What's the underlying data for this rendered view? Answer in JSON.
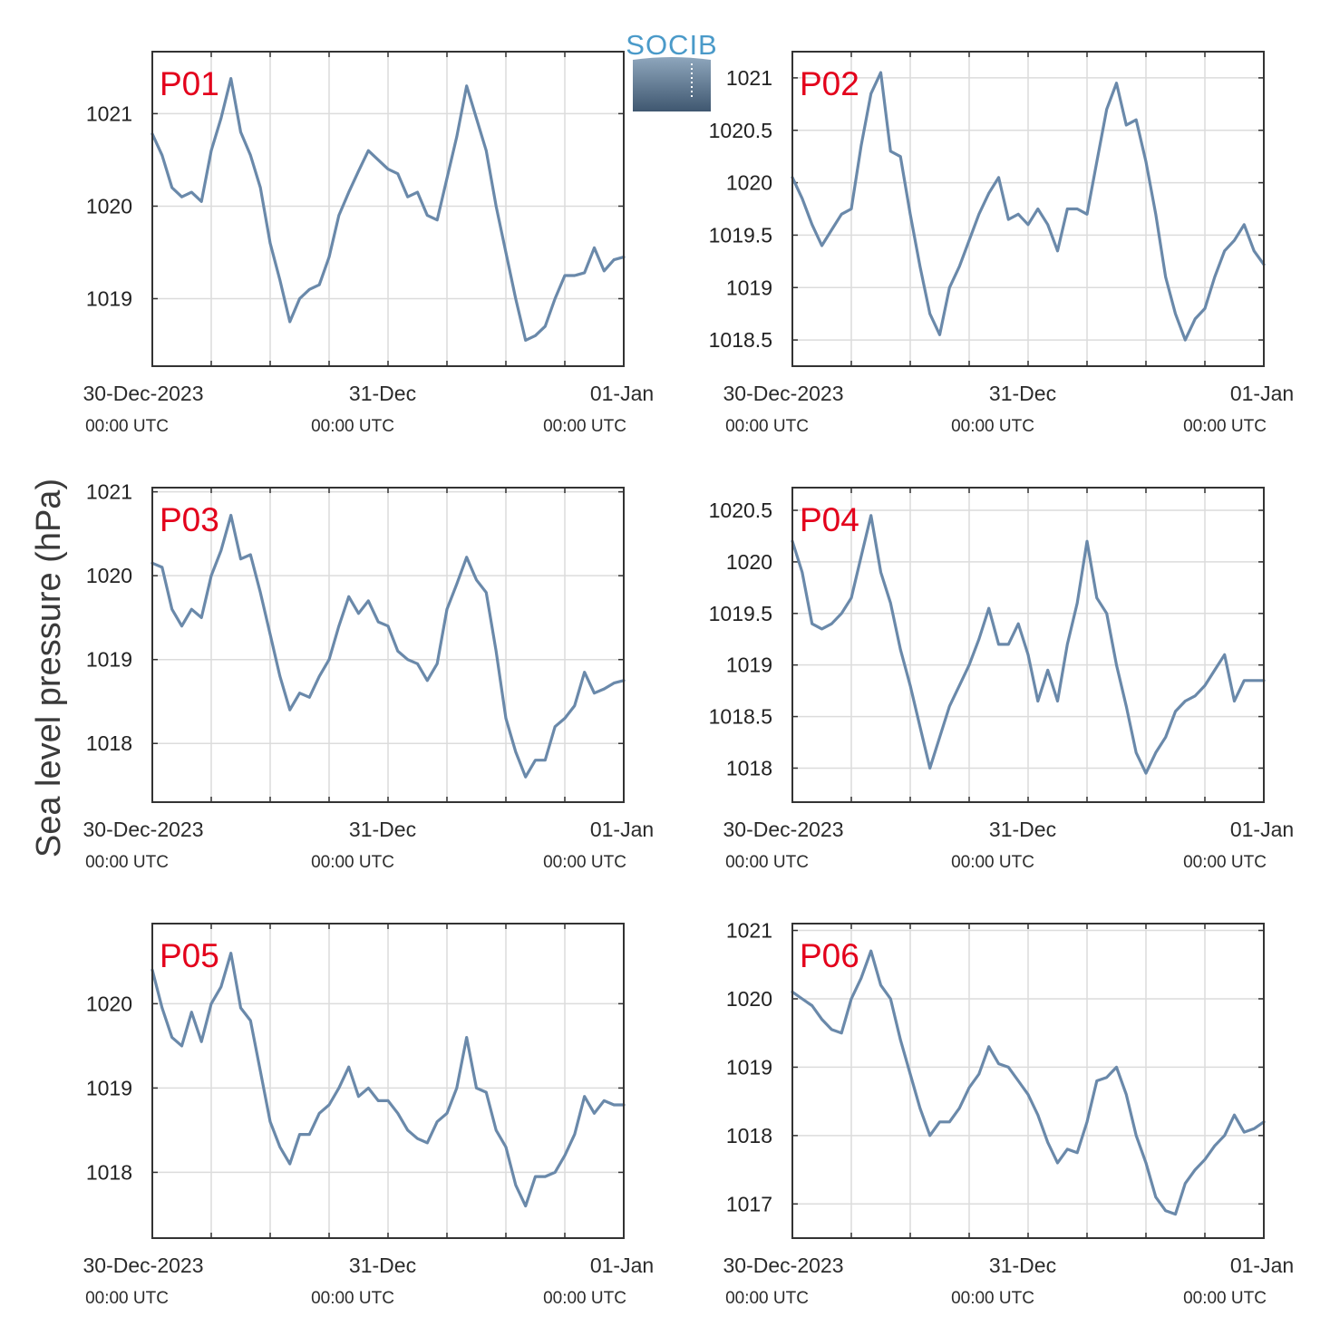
{
  "figure": {
    "ylabel": "Sea level pressure (hPa)",
    "logo_text": "SOCIB",
    "line_color": "#6a89aa",
    "title_color": "#e3001b"
  },
  "chart_data": [
    {
      "type": "line",
      "title": "P01",
      "xlabel": "",
      "ylabel": "Sea level pressure (hPa)",
      "xlim": [
        0,
        48
      ],
      "ylim": [
        1018.27,
        1021.67
      ],
      "yticks": [
        1019,
        1020,
        1021
      ],
      "ytick_labels": [
        "1019",
        "1020",
        "1021"
      ],
      "xtick_labels": [
        {
          "x": 0,
          "main": "30-Dec-2023",
          "sub": "00:00 UTC"
        },
        {
          "x": 24,
          "main": "31-Dec",
          "sub": "00:00 UTC"
        },
        {
          "x": 48,
          "main": "01-Jan",
          "sub": "00:00 UTC"
        }
      ],
      "series": [
        {
          "x": [
            0,
            1,
            2,
            3,
            4,
            5,
            6,
            7,
            8,
            9,
            10,
            11,
            12,
            13,
            14,
            15,
            16,
            17,
            18,
            19,
            20,
            21,
            22,
            23,
            24,
            25,
            26,
            27,
            28,
            29,
            30,
            31,
            32,
            33,
            34,
            35,
            36,
            37,
            38,
            39,
            40,
            41,
            42,
            43,
            44,
            45,
            46,
            47,
            48
          ],
          "values": [
            1020.78,
            1020.55,
            1020.2,
            1020.1,
            1020.15,
            1020.05,
            1020.6,
            1020.95,
            1021.38,
            1020.8,
            1020.55,
            1020.2,
            1019.6,
            1019.2,
            1018.75,
            1019.0,
            1019.1,
            1019.15,
            1019.45,
            1019.9,
            1020.15,
            1020.38,
            1020.6,
            1020.5,
            1020.4,
            1020.35,
            1020.1,
            1020.15,
            1019.9,
            1019.85,
            1020.3,
            1020.75,
            1021.3,
            1020.95,
            1020.6,
            1020.0,
            1019.5,
            1019.0,
            1018.55,
            1018.6,
            1018.7,
            1019.0,
            1019.25,
            1019.25,
            1019.28,
            1019.55,
            1019.3,
            1019.42,
            1019.45
          ]
        }
      ]
    },
    {
      "type": "line",
      "title": "P02",
      "xlabel": "",
      "ylabel": "Sea level pressure (hPa)",
      "xlim": [
        0,
        48
      ],
      "ylim": [
        1018.25,
        1021.25
      ],
      "yticks": [
        1018.5,
        1019,
        1019.5,
        1020,
        1020.5,
        1021
      ],
      "ytick_labels": [
        "1018.5",
        "1019",
        "1019.5",
        "1020",
        "1020.5",
        "1021"
      ],
      "xtick_labels": [
        {
          "x": 0,
          "main": "30-Dec-2023",
          "sub": "00:00 UTC"
        },
        {
          "x": 24,
          "main": "31-Dec",
          "sub": "00:00 UTC"
        },
        {
          "x": 48,
          "main": "01-Jan",
          "sub": "00:00 UTC"
        }
      ],
      "series": [
        {
          "x": [
            0,
            1,
            2,
            3,
            4,
            5,
            6,
            7,
            8,
            9,
            10,
            11,
            12,
            13,
            14,
            15,
            16,
            17,
            18,
            19,
            20,
            21,
            22,
            23,
            24,
            25,
            26,
            27,
            28,
            29,
            30,
            31,
            32,
            33,
            34,
            35,
            36,
            37,
            38,
            39,
            40,
            41,
            42,
            43,
            44,
            45,
            46,
            47,
            48
          ],
          "values": [
            1020.05,
            1019.85,
            1019.6,
            1019.4,
            1019.55,
            1019.7,
            1019.75,
            1020.35,
            1020.85,
            1021.05,
            1020.3,
            1020.25,
            1019.7,
            1019.2,
            1018.75,
            1018.55,
            1019.0,
            1019.2,
            1019.45,
            1019.7,
            1019.9,
            1020.05,
            1019.65,
            1019.7,
            1019.6,
            1019.75,
            1019.6,
            1019.35,
            1019.75,
            1019.75,
            1019.7,
            1020.2,
            1020.7,
            1020.95,
            1020.55,
            1020.6,
            1020.2,
            1019.7,
            1019.1,
            1018.75,
            1018.5,
            1018.7,
            1018.8,
            1019.1,
            1019.35,
            1019.45,
            1019.6,
            1019.35,
            1019.22
          ]
        }
      ]
    },
    {
      "type": "line",
      "title": "P03",
      "xlabel": "",
      "ylabel": "Sea level pressure (hPa)",
      "xlim": [
        0,
        48
      ],
      "ylim": [
        1017.3,
        1021.05
      ],
      "yticks": [
        1018,
        1019,
        1020,
        1021
      ],
      "ytick_labels": [
        "1018",
        "1019",
        "1020",
        "1021"
      ],
      "xtick_labels": [
        {
          "x": 0,
          "main": "30-Dec-2023",
          "sub": "00:00 UTC"
        },
        {
          "x": 24,
          "main": "31-Dec",
          "sub": "00:00 UTC"
        },
        {
          "x": 48,
          "main": "01-Jan",
          "sub": "00:00 UTC"
        }
      ],
      "series": [
        {
          "x": [
            0,
            1,
            2,
            3,
            4,
            5,
            6,
            7,
            8,
            9,
            10,
            11,
            12,
            13,
            14,
            15,
            16,
            17,
            18,
            19,
            20,
            21,
            22,
            23,
            24,
            25,
            26,
            27,
            28,
            29,
            30,
            31,
            32,
            33,
            34,
            35,
            36,
            37,
            38,
            39,
            40,
            41,
            42,
            43,
            44,
            45,
            46,
            47,
            48
          ],
          "values": [
            1020.15,
            1020.1,
            1019.6,
            1019.4,
            1019.6,
            1019.5,
            1020.0,
            1020.3,
            1020.72,
            1020.2,
            1020.25,
            1019.8,
            1019.3,
            1018.8,
            1018.4,
            1018.6,
            1018.55,
            1018.8,
            1019.0,
            1019.4,
            1019.75,
            1019.55,
            1019.7,
            1019.45,
            1019.4,
            1019.1,
            1019.0,
            1018.95,
            1018.75,
            1018.95,
            1019.6,
            1019.9,
            1020.22,
            1019.95,
            1019.8,
            1019.1,
            1018.3,
            1017.9,
            1017.6,
            1017.8,
            1017.8,
            1018.2,
            1018.3,
            1018.45,
            1018.85,
            1018.6,
            1018.65,
            1018.72,
            1018.75
          ]
        }
      ]
    },
    {
      "type": "line",
      "title": "P04",
      "xlabel": "",
      "ylabel": "Sea level pressure (hPa)",
      "xlim": [
        0,
        48
      ],
      "ylim": [
        1017.67,
        1020.72
      ],
      "yticks": [
        1018,
        1018.5,
        1019,
        1019.5,
        1020,
        1020.5
      ],
      "ytick_labels": [
        "1018",
        "1018.5",
        "1019",
        "1019.5",
        "1020",
        "1020.5"
      ],
      "xtick_labels": [
        {
          "x": 0,
          "main": "30-Dec-2023",
          "sub": "00:00 UTC"
        },
        {
          "x": 24,
          "main": "31-Dec",
          "sub": "00:00 UTC"
        },
        {
          "x": 48,
          "main": "01-Jan",
          "sub": "00:00 UTC"
        }
      ],
      "series": [
        {
          "x": [
            0,
            1,
            2,
            3,
            4,
            5,
            6,
            7,
            8,
            9,
            10,
            11,
            12,
            13,
            14,
            15,
            16,
            17,
            18,
            19,
            20,
            21,
            22,
            23,
            24,
            25,
            26,
            27,
            28,
            29,
            30,
            31,
            32,
            33,
            34,
            35,
            36,
            37,
            38,
            39,
            40,
            41,
            42,
            43,
            44,
            45,
            46,
            47,
            48
          ],
          "values": [
            1020.2,
            1019.9,
            1019.4,
            1019.35,
            1019.4,
            1019.5,
            1019.65,
            1020.05,
            1020.45,
            1019.9,
            1019.6,
            1019.15,
            1018.8,
            1018.4,
            1018.0,
            1018.3,
            1018.6,
            1018.8,
            1019.0,
            1019.25,
            1019.55,
            1019.2,
            1019.2,
            1019.4,
            1019.1,
            1018.65,
            1018.95,
            1018.65,
            1019.2,
            1019.6,
            1020.2,
            1019.65,
            1019.5,
            1019.0,
            1018.6,
            1018.15,
            1017.95,
            1018.15,
            1018.3,
            1018.55,
            1018.65,
            1018.7,
            1018.8,
            1018.95,
            1019.1,
            1018.65,
            1018.85,
            1018.85,
            1018.85
          ]
        }
      ]
    },
    {
      "type": "line",
      "title": "P05",
      "xlabel": "",
      "ylabel": "Sea level pressure (hPa)",
      "xlim": [
        0,
        48
      ],
      "ylim": [
        1017.22,
        1020.95
      ],
      "yticks": [
        1018,
        1019,
        1020
      ],
      "ytick_labels": [
        "1018",
        "1019",
        "1020"
      ],
      "xtick_labels": [
        {
          "x": 0,
          "main": "30-Dec-2023",
          "sub": "00:00 UTC"
        },
        {
          "x": 24,
          "main": "31-Dec",
          "sub": "00:00 UTC"
        },
        {
          "x": 48,
          "main": "01-Jan",
          "sub": "00:00 UTC"
        }
      ],
      "series": [
        {
          "x": [
            0,
            1,
            2,
            3,
            4,
            5,
            6,
            7,
            8,
            9,
            10,
            11,
            12,
            13,
            14,
            15,
            16,
            17,
            18,
            19,
            20,
            21,
            22,
            23,
            24,
            25,
            26,
            27,
            28,
            29,
            30,
            31,
            32,
            33,
            34,
            35,
            36,
            37,
            38,
            39,
            40,
            41,
            42,
            43,
            44,
            45,
            46,
            47,
            48
          ],
          "values": [
            1020.4,
            1019.95,
            1019.6,
            1019.5,
            1019.9,
            1019.55,
            1020.0,
            1020.2,
            1020.6,
            1019.95,
            1019.8,
            1019.2,
            1018.6,
            1018.3,
            1018.1,
            1018.45,
            1018.45,
            1018.7,
            1018.8,
            1019.0,
            1019.25,
            1018.9,
            1019.0,
            1018.85,
            1018.85,
            1018.7,
            1018.5,
            1018.4,
            1018.35,
            1018.6,
            1018.7,
            1019.0,
            1019.6,
            1019.0,
            1018.95,
            1018.5,
            1018.3,
            1017.85,
            1017.6,
            1017.95,
            1017.95,
            1018.0,
            1018.2,
            1018.45,
            1018.9,
            1018.7,
            1018.85,
            1018.8,
            1018.8
          ]
        }
      ]
    },
    {
      "type": "line",
      "title": "P06",
      "xlabel": "",
      "ylabel": "Sea level pressure (hPa)",
      "xlim": [
        0,
        48
      ],
      "ylim": [
        1016.5,
        1021.1
      ],
      "yticks": [
        1017,
        1018,
        1019,
        1020,
        1021
      ],
      "ytick_labels": [
        "1017",
        "1018",
        "1019",
        "1020",
        "1021"
      ],
      "xtick_labels": [
        {
          "x": 0,
          "main": "30-Dec-2023",
          "sub": "00:00 UTC"
        },
        {
          "x": 24,
          "main": "31-Dec",
          "sub": "00:00 UTC"
        },
        {
          "x": 48,
          "main": "01-Jan",
          "sub": "00:00 UTC"
        }
      ],
      "series": [
        {
          "x": [
            0,
            1,
            2,
            3,
            4,
            5,
            6,
            7,
            8,
            9,
            10,
            11,
            12,
            13,
            14,
            15,
            16,
            17,
            18,
            19,
            20,
            21,
            22,
            23,
            24,
            25,
            26,
            27,
            28,
            29,
            30,
            31,
            32,
            33,
            34,
            35,
            36,
            37,
            38,
            39,
            40,
            41,
            42,
            43,
            44,
            45,
            46,
            47,
            48
          ],
          "values": [
            1020.1,
            1020.0,
            1019.9,
            1019.7,
            1019.55,
            1019.5,
            1020.0,
            1020.3,
            1020.7,
            1020.2,
            1020.0,
            1019.4,
            1018.9,
            1018.4,
            1018.0,
            1018.2,
            1018.2,
            1018.4,
            1018.7,
            1018.9,
            1019.3,
            1019.05,
            1019.0,
            1018.8,
            1018.6,
            1018.3,
            1017.9,
            1017.6,
            1017.8,
            1017.75,
            1018.2,
            1018.8,
            1018.85,
            1019.0,
            1018.6,
            1018.0,
            1017.6,
            1017.1,
            1016.9,
            1016.85,
            1017.3,
            1017.5,
            1017.65,
            1017.85,
            1018.0,
            1018.3,
            1018.05,
            1018.1,
            1018.2
          ]
        }
      ]
    }
  ]
}
